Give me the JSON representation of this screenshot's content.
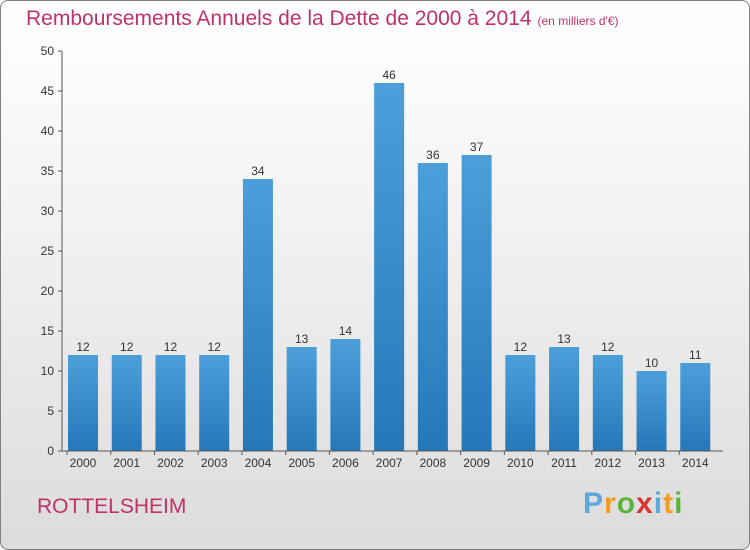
{
  "chart_data": {
    "type": "bar",
    "title": "Remboursements Annuels de la Dette de 2000 à 2014",
    "subtitle": "(en milliers d'€)",
    "categories": [
      "2000",
      "2001",
      "2002",
      "2003",
      "2004",
      "2005",
      "2006",
      "2007",
      "2008",
      "2009",
      "2010",
      "2011",
      "2012",
      "2013",
      "2014"
    ],
    "values": [
      12,
      12,
      12,
      12,
      34,
      13,
      14,
      46,
      36,
      37,
      12,
      13,
      12,
      10,
      11
    ],
    "data_labels": [
      "12",
      "12",
      "12",
      "12",
      "34",
      "13",
      "14",
      "46",
      "36",
      "37",
      "12",
      "13",
      "12",
      "10",
      "11"
    ],
    "ylim": [
      0,
      50
    ],
    "yticks": [
      0,
      5,
      10,
      15,
      20,
      25,
      30,
      35,
      40,
      45,
      50
    ],
    "ytick_labels": [
      "0",
      "5",
      "10",
      "15",
      "20",
      "25",
      "30",
      "35",
      "40",
      "45",
      "50"
    ],
    "grid": false,
    "bar_color": "#4d9fdb",
    "bar_color_dark": "#2677b8"
  },
  "commune": "ROTTELSHEIM",
  "brand": {
    "letters": [
      "P",
      "r",
      "o",
      "x",
      "i",
      "t",
      "i"
    ],
    "colors": [
      "#5ba8dc",
      "#f39c1f",
      "#5bb33c",
      "#d9352e",
      "#5ba8dc",
      "#f39c1f",
      "#5bb33c"
    ]
  },
  "colors": {
    "title": "#c0316a",
    "axis": "#555555"
  }
}
